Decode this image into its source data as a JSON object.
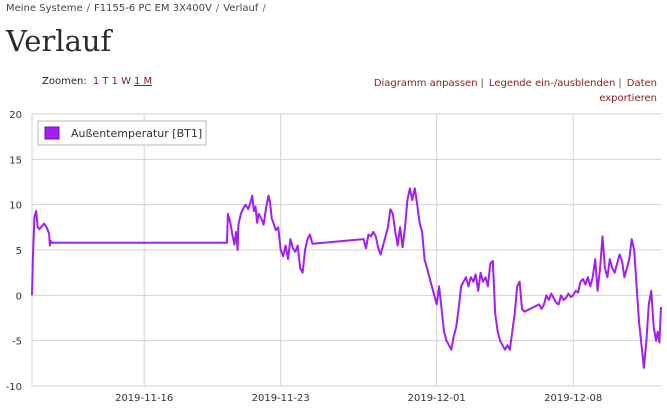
{
  "breadcrumb": {
    "items": [
      "Meine Systeme",
      "F1155-6 PC EM 3X400V",
      "Verlauf"
    ],
    "separator": "/"
  },
  "page_title": "Verlauf",
  "zoom": {
    "label": "Zoomen:",
    "options": [
      "1 T",
      "1 W",
      "1 M"
    ],
    "active": "1 M"
  },
  "actions": {
    "adjust": "Diagramm anpassen",
    "legend_toggle": "Legende ein-/ausblenden",
    "export": "Daten exportieren",
    "separator": "|"
  },
  "colors": {
    "series": "#a020f0",
    "link": "#8b1a1a",
    "grid": "#d3d3d3"
  },
  "chart_data": {
    "type": "line",
    "ylim": [
      -10,
      20
    ],
    "y_ticks": [
      20,
      15,
      10,
      5,
      0,
      -5,
      -10
    ],
    "x_range": [
      "2019-11-10T06:00",
      "2019-12-12T12:00"
    ],
    "x_ticks": [
      "2019-11-16",
      "2019-11-23",
      "2019-12-01",
      "2019-12-08"
    ],
    "grid": true,
    "legend_position": "top-left",
    "series": [
      {
        "name": "Außentemperatur [BT1]",
        "color": "#a020f0",
        "points": [
          [
            "2019-11-10T06:00",
            0
          ],
          [
            "2019-11-10T07:00",
            3.8
          ],
          [
            "2019-11-10T09:00",
            8.6
          ],
          [
            "2019-11-10T11:00",
            9.3
          ],
          [
            "2019-11-10T13:00",
            7.5
          ],
          [
            "2019-11-10T15:00",
            7.3
          ],
          [
            "2019-11-10T18:00",
            7.6
          ],
          [
            "2019-11-10T21:00",
            7.9
          ],
          [
            "2019-11-11T00:00",
            7.5
          ],
          [
            "2019-11-11T03:00",
            6.8
          ],
          [
            "2019-11-11T04:00",
            5.5
          ],
          [
            "2019-11-11T05:00",
            6.0
          ],
          [
            "2019-11-11T06:00",
            5.8
          ],
          [
            "2019-11-15T12:00",
            5.8
          ],
          [
            "2019-11-20T06:00",
            5.8
          ],
          [
            "2019-11-20T07:00",
            9.0
          ],
          [
            "2019-11-20T10:00",
            8.0
          ],
          [
            "2019-11-20T13:00",
            6.5
          ],
          [
            "2019-11-20T15:00",
            5.6
          ],
          [
            "2019-11-20T17:00",
            7.0
          ],
          [
            "2019-11-20T19:00",
            5.0
          ],
          [
            "2019-11-20T20:00",
            7.8
          ],
          [
            "2019-11-20T23:00",
            9.0
          ],
          [
            "2019-11-21T02:00",
            9.6
          ],
          [
            "2019-11-21T05:00",
            10.0
          ],
          [
            "2019-11-21T08:00",
            9.5
          ],
          [
            "2019-11-21T11:00",
            10.3
          ],
          [
            "2019-11-21T13:00",
            11.0
          ],
          [
            "2019-11-21T15:00",
            9.3
          ],
          [
            "2019-11-21T17:00",
            9.8
          ],
          [
            "2019-11-21T19:00",
            8.0
          ],
          [
            "2019-11-21T21:00",
            9.0
          ],
          [
            "2019-11-22T00:00",
            8.5
          ],
          [
            "2019-11-22T03:00",
            7.8
          ],
          [
            "2019-11-22T06:00",
            9.6
          ],
          [
            "2019-11-22T09:00",
            11.0
          ],
          [
            "2019-11-22T11:00",
            10.2
          ],
          [
            "2019-11-22T13:00",
            8.5
          ],
          [
            "2019-11-22T15:00",
            8.0
          ],
          [
            "2019-11-22T18:00",
            7.2
          ],
          [
            "2019-11-22T21:00",
            7.5
          ],
          [
            "2019-11-23T00:00",
            5.0
          ],
          [
            "2019-11-23T03:00",
            4.3
          ],
          [
            "2019-11-23T06:00",
            5.5
          ],
          [
            "2019-11-23T09:00",
            4.0
          ],
          [
            "2019-11-23T12:00",
            6.2
          ],
          [
            "2019-11-23T15:00",
            5.2
          ],
          [
            "2019-11-23T18:00",
            4.8
          ],
          [
            "2019-11-23T21:00",
            5.5
          ],
          [
            "2019-11-24T00:00",
            3.0
          ],
          [
            "2019-11-24T03:00",
            2.5
          ],
          [
            "2019-11-24T06:00",
            5.0
          ],
          [
            "2019-11-24T09:00",
            6.2
          ],
          [
            "2019-11-24T12:00",
            6.7
          ],
          [
            "2019-11-24T15:00",
            5.7
          ],
          [
            "2019-11-27T06:00",
            6.2
          ],
          [
            "2019-11-27T09:00",
            5.2
          ],
          [
            "2019-11-27T12:00",
            6.7
          ],
          [
            "2019-11-27T15:00",
            6.5
          ],
          [
            "2019-11-27T18:00",
            7.0
          ],
          [
            "2019-11-27T21:00",
            6.5
          ],
          [
            "2019-11-28T00:00",
            5.2
          ],
          [
            "2019-11-28T03:00",
            4.5
          ],
          [
            "2019-11-28T06:00",
            5.5
          ],
          [
            "2019-11-28T09:00",
            6.5
          ],
          [
            "2019-11-28T12:00",
            7.5
          ],
          [
            "2019-11-28T15:00",
            9.5
          ],
          [
            "2019-11-28T18:00",
            9.0
          ],
          [
            "2019-11-28T21:00",
            7.0
          ],
          [
            "2019-11-29T00:00",
            5.5
          ],
          [
            "2019-11-29T03:00",
            7.5
          ],
          [
            "2019-11-29T06:00",
            5.3
          ],
          [
            "2019-11-29T09:00",
            7.5
          ],
          [
            "2019-11-29T12:00",
            10.5
          ],
          [
            "2019-11-29T15:00",
            11.8
          ],
          [
            "2019-11-29T18:00",
            10.5
          ],
          [
            "2019-11-29T21:00",
            11.8
          ],
          [
            "2019-11-30T00:00",
            10.0
          ],
          [
            "2019-11-30T03:00",
            8.0
          ],
          [
            "2019-11-30T06:00",
            7.0
          ],
          [
            "2019-11-30T09:00",
            4.0
          ],
          [
            "2019-11-30T12:00",
            3.0
          ],
          [
            "2019-11-30T15:00",
            2.0
          ],
          [
            "2019-11-30T18:00",
            1.0
          ],
          [
            "2019-11-30T21:00",
            0.0
          ],
          [
            "2019-12-01T00:00",
            -1.0
          ],
          [
            "2019-12-01T03:00",
            1.0
          ],
          [
            "2019-12-01T06:00",
            -1.5
          ],
          [
            "2019-12-01T09:00",
            -4.0
          ],
          [
            "2019-12-01T12:00",
            -5.0
          ],
          [
            "2019-12-01T15:00",
            -5.5
          ],
          [
            "2019-12-01T18:00",
            -6.0
          ],
          [
            "2019-12-01T21:00",
            -4.5
          ],
          [
            "2019-12-02T00:00",
            -3.5
          ],
          [
            "2019-12-02T03:00",
            -1.5
          ],
          [
            "2019-12-02T06:00",
            1.0
          ],
          [
            "2019-12-02T09:00",
            1.5
          ],
          [
            "2019-12-02T12:00",
            2.0
          ],
          [
            "2019-12-02T15:00",
            1.0
          ],
          [
            "2019-12-02T18:00",
            2.0
          ],
          [
            "2019-12-02T21:00",
            1.5
          ],
          [
            "2019-12-03T00:00",
            2.3
          ],
          [
            "2019-12-03T03:00",
            0.5
          ],
          [
            "2019-12-03T06:00",
            2.5
          ],
          [
            "2019-12-03T09:00",
            1.5
          ],
          [
            "2019-12-03T12:00",
            2.0
          ],
          [
            "2019-12-03T15:00",
            1.0
          ],
          [
            "2019-12-03T18:00",
            3.5
          ],
          [
            "2019-12-03T21:00",
            3.8
          ],
          [
            "2019-12-04T00:00",
            -2.0
          ],
          [
            "2019-12-04T03:00",
            -4.0
          ],
          [
            "2019-12-04T06:00",
            -5.0
          ],
          [
            "2019-12-04T09:00",
            -5.5
          ],
          [
            "2019-12-04T12:00",
            -6.0
          ],
          [
            "2019-12-04T15:00",
            -5.5
          ],
          [
            "2019-12-04T18:00",
            -6.0
          ],
          [
            "2019-12-04T21:00",
            -4.0
          ],
          [
            "2019-12-05T00:00",
            -2.0
          ],
          [
            "2019-12-05T03:00",
            1.0
          ],
          [
            "2019-12-05T06:00",
            1.5
          ],
          [
            "2019-12-05T09:00",
            -1.5
          ],
          [
            "2019-12-05T12:00",
            -1.8
          ],
          [
            "2019-12-06T06:00",
            -1.0
          ],
          [
            "2019-12-06T09:00",
            -1.5
          ],
          [
            "2019-12-06T12:00",
            -1.0
          ],
          [
            "2019-12-06T15:00",
            0.0
          ],
          [
            "2019-12-06T18:00",
            -0.5
          ],
          [
            "2019-12-06T21:00",
            0.2
          ],
          [
            "2019-12-07T00:00",
            -0.3
          ],
          [
            "2019-12-07T03:00",
            -0.8
          ],
          [
            "2019-12-07T06:00",
            -1.0
          ],
          [
            "2019-12-07T09:00",
            0.0
          ],
          [
            "2019-12-07T12:00",
            -0.5
          ],
          [
            "2019-12-07T15:00",
            -0.3
          ],
          [
            "2019-12-07T18:00",
            0.2
          ],
          [
            "2019-12-07T21:00",
            -0.2
          ],
          [
            "2019-12-08T00:00",
            0.0
          ],
          [
            "2019-12-08T03:00",
            0.5
          ],
          [
            "2019-12-08T06:00",
            0.3
          ],
          [
            "2019-12-08T09:00",
            1.5
          ],
          [
            "2019-12-08T12:00",
            1.8
          ],
          [
            "2019-12-08T15:00",
            1.2
          ],
          [
            "2019-12-08T18:00",
            2.0
          ],
          [
            "2019-12-08T21:00",
            1.0
          ],
          [
            "2019-12-09T00:00",
            2.0
          ],
          [
            "2019-12-09T03:00",
            4.0
          ],
          [
            "2019-12-09T06:00",
            0.5
          ],
          [
            "2019-12-09T09:00",
            3.0
          ],
          [
            "2019-12-09T12:00",
            6.5
          ],
          [
            "2019-12-09T15:00",
            3.0
          ],
          [
            "2019-12-09T18:00",
            2.0
          ],
          [
            "2019-12-09T21:00",
            4.0
          ],
          [
            "2019-12-10T00:00",
            3.0
          ],
          [
            "2019-12-10T03:00",
            2.5
          ],
          [
            "2019-12-10T06:00",
            3.5
          ],
          [
            "2019-12-10T09:00",
            4.5
          ],
          [
            "2019-12-10T12:00",
            3.8
          ],
          [
            "2019-12-10T15:00",
            2.0
          ],
          [
            "2019-12-10T18:00",
            3.0
          ],
          [
            "2019-12-10T21:00",
            4.0
          ],
          [
            "2019-12-11T00:00",
            6.2
          ],
          [
            "2019-12-11T03:00",
            5.0
          ],
          [
            "2019-12-11T06:00",
            1.0
          ],
          [
            "2019-12-11T09:00",
            -3.0
          ],
          [
            "2019-12-11T12:00",
            -5.5
          ],
          [
            "2019-12-11T15:00",
            -8.0
          ],
          [
            "2019-12-11T18:00",
            -5.0
          ],
          [
            "2019-12-11T21:00",
            -1.0
          ],
          [
            "2019-12-12T00:00",
            0.5
          ],
          [
            "2019-12-12T03:00",
            -3.5
          ],
          [
            "2019-12-12T06:00",
            -5.0
          ],
          [
            "2019-12-12T08:00",
            -4.0
          ],
          [
            "2019-12-12T10:00",
            -5.2
          ],
          [
            "2019-12-12T12:00",
            -1.3
          ]
        ]
      }
    ]
  }
}
